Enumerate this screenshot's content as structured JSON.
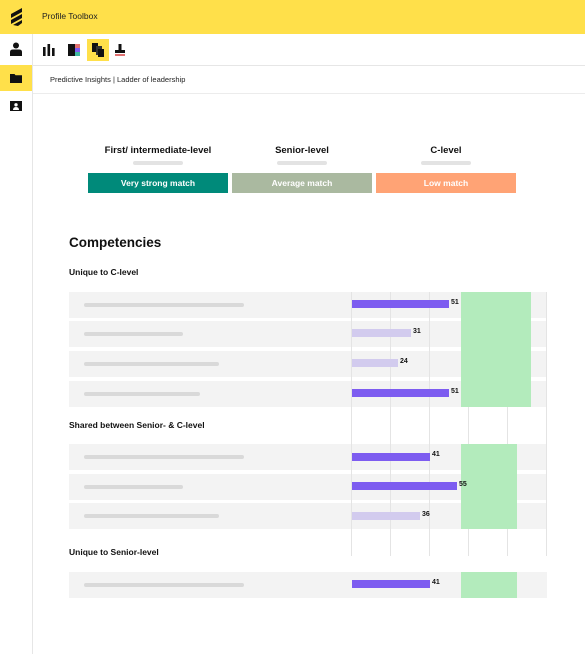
{
  "app": {
    "title": "Profile Toolbox"
  },
  "breadcrumb": "Predictive Insights | Ladder of leadership",
  "sidebar": {
    "items": [
      {
        "icon": "person-icon"
      },
      {
        "icon": "folder-icon",
        "active": true
      },
      {
        "icon": "id-card-icon"
      }
    ]
  },
  "toolbar": {
    "tools": [
      {
        "icon": "bar-chart-icon"
      },
      {
        "icon": "color-swatch-icon"
      },
      {
        "icon": "ladder-chart-icon",
        "active": true
      },
      {
        "icon": "stamp-icon"
      }
    ]
  },
  "levels": [
    {
      "label": "First/ intermediate-level"
    },
    {
      "label": "Senior-level"
    },
    {
      "label": "C-level"
    }
  ],
  "matches": [
    {
      "label": "Very strong match",
      "color": "#008a7a"
    },
    {
      "label": "Average match",
      "color": "#aab9a0"
    },
    {
      "label": "Low match",
      "color": "#ffa375"
    }
  ],
  "competencies": {
    "title": "Competencies",
    "groups": [
      {
        "title": "Unique to C-level",
        "rows": [
          {
            "value": 51,
            "highlight": true
          },
          {
            "value": 31,
            "highlight": false
          },
          {
            "value": 24,
            "highlight": false
          },
          {
            "value": 51,
            "highlight": true
          }
        ]
      },
      {
        "title": "Shared between Senior- & C-level",
        "rows": [
          {
            "value": 41,
            "highlight": true
          },
          {
            "value": 55,
            "highlight": true
          },
          {
            "value": 36,
            "highlight": false
          }
        ]
      },
      {
        "title": "Unique to Senior-level",
        "rows": [
          {
            "value": 41,
            "highlight": true
          }
        ]
      }
    ]
  },
  "colors": {
    "accent": "#ffe04a",
    "bar_strong": "#7d5cf0",
    "bar_light": "#d2cbee",
    "target_zone": "#b3ebbc"
  }
}
